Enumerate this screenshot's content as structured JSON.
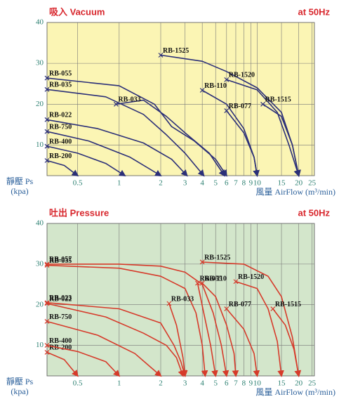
{
  "chart_data": [
    {
      "type": "line",
      "title": "吸入 Vacuum",
      "subtitle": "at 50Hz",
      "y_label": [
        "靜壓 Ps",
        "(kpa)"
      ],
      "x_label": "風量 AirFlow (m³/min)",
      "log_x": true,
      "grid": true,
      "background": "#fbf5b4",
      "color": "#2b2f78",
      "xlim": [
        0.3,
        26
      ],
      "xticks": [
        0.5,
        1,
        2,
        3,
        4,
        5,
        6,
        7,
        8,
        9,
        10,
        15,
        20,
        25
      ],
      "ylim": [
        2.5,
        40
      ],
      "yticks": [
        10,
        20,
        30,
        40
      ],
      "series": [
        {
          "name": "RB-200",
          "x": [
            0.3,
            0.4,
            0.5
          ],
          "values": [
            6.2,
            5,
            2.5
          ]
        },
        {
          "name": "RB-400",
          "x": [
            0.3,
            0.5,
            0.8,
            1.1
          ],
          "values": [
            9.7,
            8,
            5.5,
            2.5
          ]
        },
        {
          "name": "RB-750",
          "x": [
            0.3,
            0.6,
            1.2,
            2
          ],
          "values": [
            13.3,
            11,
            7,
            2.5
          ]
        },
        {
          "name": "RB-022",
          "x": [
            0.3,
            0.7,
            1.5,
            2.4,
            3.1
          ],
          "values": [
            16.2,
            14,
            10.5,
            6.5,
            2.5
          ]
        },
        {
          "name": "RB-035",
          "x": [
            0.3,
            0.8,
            1.5,
            2.2,
            3,
            4.1
          ],
          "values": [
            23.6,
            21.8,
            17.5,
            12.5,
            8,
            2.5
          ]
        },
        {
          "name": "RB-055",
          "x": [
            0.3,
            1,
            1.8,
            2.4,
            3.5,
            5,
            6
          ],
          "values": [
            26.4,
            24.5,
            20,
            14.5,
            11,
            6.5,
            2.5
          ]
        },
        {
          "name": "RB-033",
          "x": [
            0.95,
            1.5,
            2.2,
            3,
            4.5,
            5.8
          ],
          "values": [
            20,
            21,
            17,
            13,
            8,
            2.5
          ]
        },
        {
          "name": "RB-1525",
          "x": [
            2,
            4,
            6,
            10,
            15,
            18,
            20
          ],
          "values": [
            32,
            30.5,
            28,
            24,
            18,
            10,
            2.5
          ]
        },
        {
          "name": "RB-1520",
          "x": [
            6,
            10,
            14,
            17,
            20
          ],
          "values": [
            26,
            23.5,
            18,
            10,
            2.5
          ]
        },
        {
          "name": "RB-1515",
          "x": [
            11,
            15,
            18,
            20
          ],
          "values": [
            20,
            17,
            10,
            2.5
          ]
        },
        {
          "name": "RB-110",
          "x": [
            4,
            6,
            8,
            9.5,
            10
          ],
          "values": [
            23.4,
            20,
            14,
            7,
            2.5
          ]
        },
        {
          "name": "RB-077",
          "x": [
            6,
            8,
            9.5,
            10
          ],
          "values": [
            18.4,
            13,
            7,
            2.5
          ]
        }
      ]
    },
    {
      "type": "line",
      "title": "吐出 Pressure",
      "subtitle": "at 50Hz",
      "y_label": [
        "靜壓 Ps",
        "(kpa)"
      ],
      "x_label": "風量 AirFlow (m³/min)",
      "log_x": true,
      "grid": true,
      "background": "#d3e6cb",
      "color": "#d63a2a",
      "xlim": [
        0.3,
        26
      ],
      "xticks": [
        0.5,
        1,
        2,
        3,
        4,
        5,
        6,
        7,
        8,
        9,
        10,
        15,
        20,
        25
      ],
      "ylim": [
        2.5,
        40
      ],
      "yticks": [
        10,
        20,
        30,
        40
      ],
      "series": [
        {
          "name": "RB-200",
          "x": [
            0.3,
            0.4,
            0.5
          ],
          "values": [
            8.3,
            6.5,
            2.5
          ]
        },
        {
          "name": "RB-400",
          "x": [
            0.3,
            0.5,
            0.8,
            1
          ],
          "values": [
            10,
            8.5,
            6,
            2.5
          ]
        },
        {
          "name": "RB-750",
          "x": [
            0.3,
            0.7,
            1.3,
            2
          ],
          "values": [
            15.9,
            12.5,
            8,
            2.5
          ]
        },
        {
          "name": "RB-023",
          "x": [
            0.3,
            1,
            2,
            2.5,
            2.8,
            3
          ],
          "values": [
            20.5,
            19,
            15.5,
            10,
            6,
            2.5
          ]
        },
        {
          "name": "RB-022",
          "x": [
            0.3,
            0.8,
            1.5,
            2.2,
            2.6,
            2.9
          ],
          "values": [
            20.3,
            17,
            13,
            10,
            7,
            2.5
          ]
        },
        {
          "name": "RB-035",
          "x": [
            0.3,
            1,
            2,
            3,
            3.6,
            4,
            4.2
          ],
          "values": [
            29.7,
            29,
            27,
            24,
            18,
            10,
            2.5
          ]
        },
        {
          "name": "RB-057",
          "x": [
            0.3,
            1,
            2,
            3,
            4,
            4.8,
            5.5,
            6
          ],
          "values": [
            30,
            30,
            29.5,
            28,
            25,
            18,
            10,
            2.5
          ]
        },
        {
          "name": "RB-033",
          "x": [
            2.3,
            2.6,
            2.9,
            3
          ],
          "values": [
            20.3,
            15,
            7,
            2.5
          ]
        },
        {
          "name": "RB-055",
          "x": [
            3.7,
            4.1,
            4.6,
            5
          ],
          "values": [
            25.3,
            18,
            10,
            2.5
          ]
        },
        {
          "name": "RB-1525",
          "x": [
            4,
            8,
            12,
            15,
            18,
            20
          ],
          "values": [
            30.5,
            30,
            27,
            22,
            12,
            2.5
          ]
        },
        {
          "name": "RB-1520",
          "x": [
            7,
            10,
            12,
            14,
            15
          ],
          "values": [
            25.7,
            24,
            19,
            11,
            2.5
          ]
        },
        {
          "name": "RB-1515",
          "x": [
            13,
            16,
            18.5,
            20
          ],
          "values": [
            19,
            15,
            9,
            2.5
          ]
        },
        {
          "name": "RB-110",
          "x": [
            4,
            5,
            6,
            6.8,
            7
          ],
          "values": [
            25.3,
            22,
            15,
            8,
            2.5
          ]
        },
        {
          "name": "RB-077",
          "x": [
            6,
            8,
            9.5,
            10
          ],
          "values": [
            19,
            14,
            8,
            2.5
          ]
        }
      ]
    }
  ]
}
